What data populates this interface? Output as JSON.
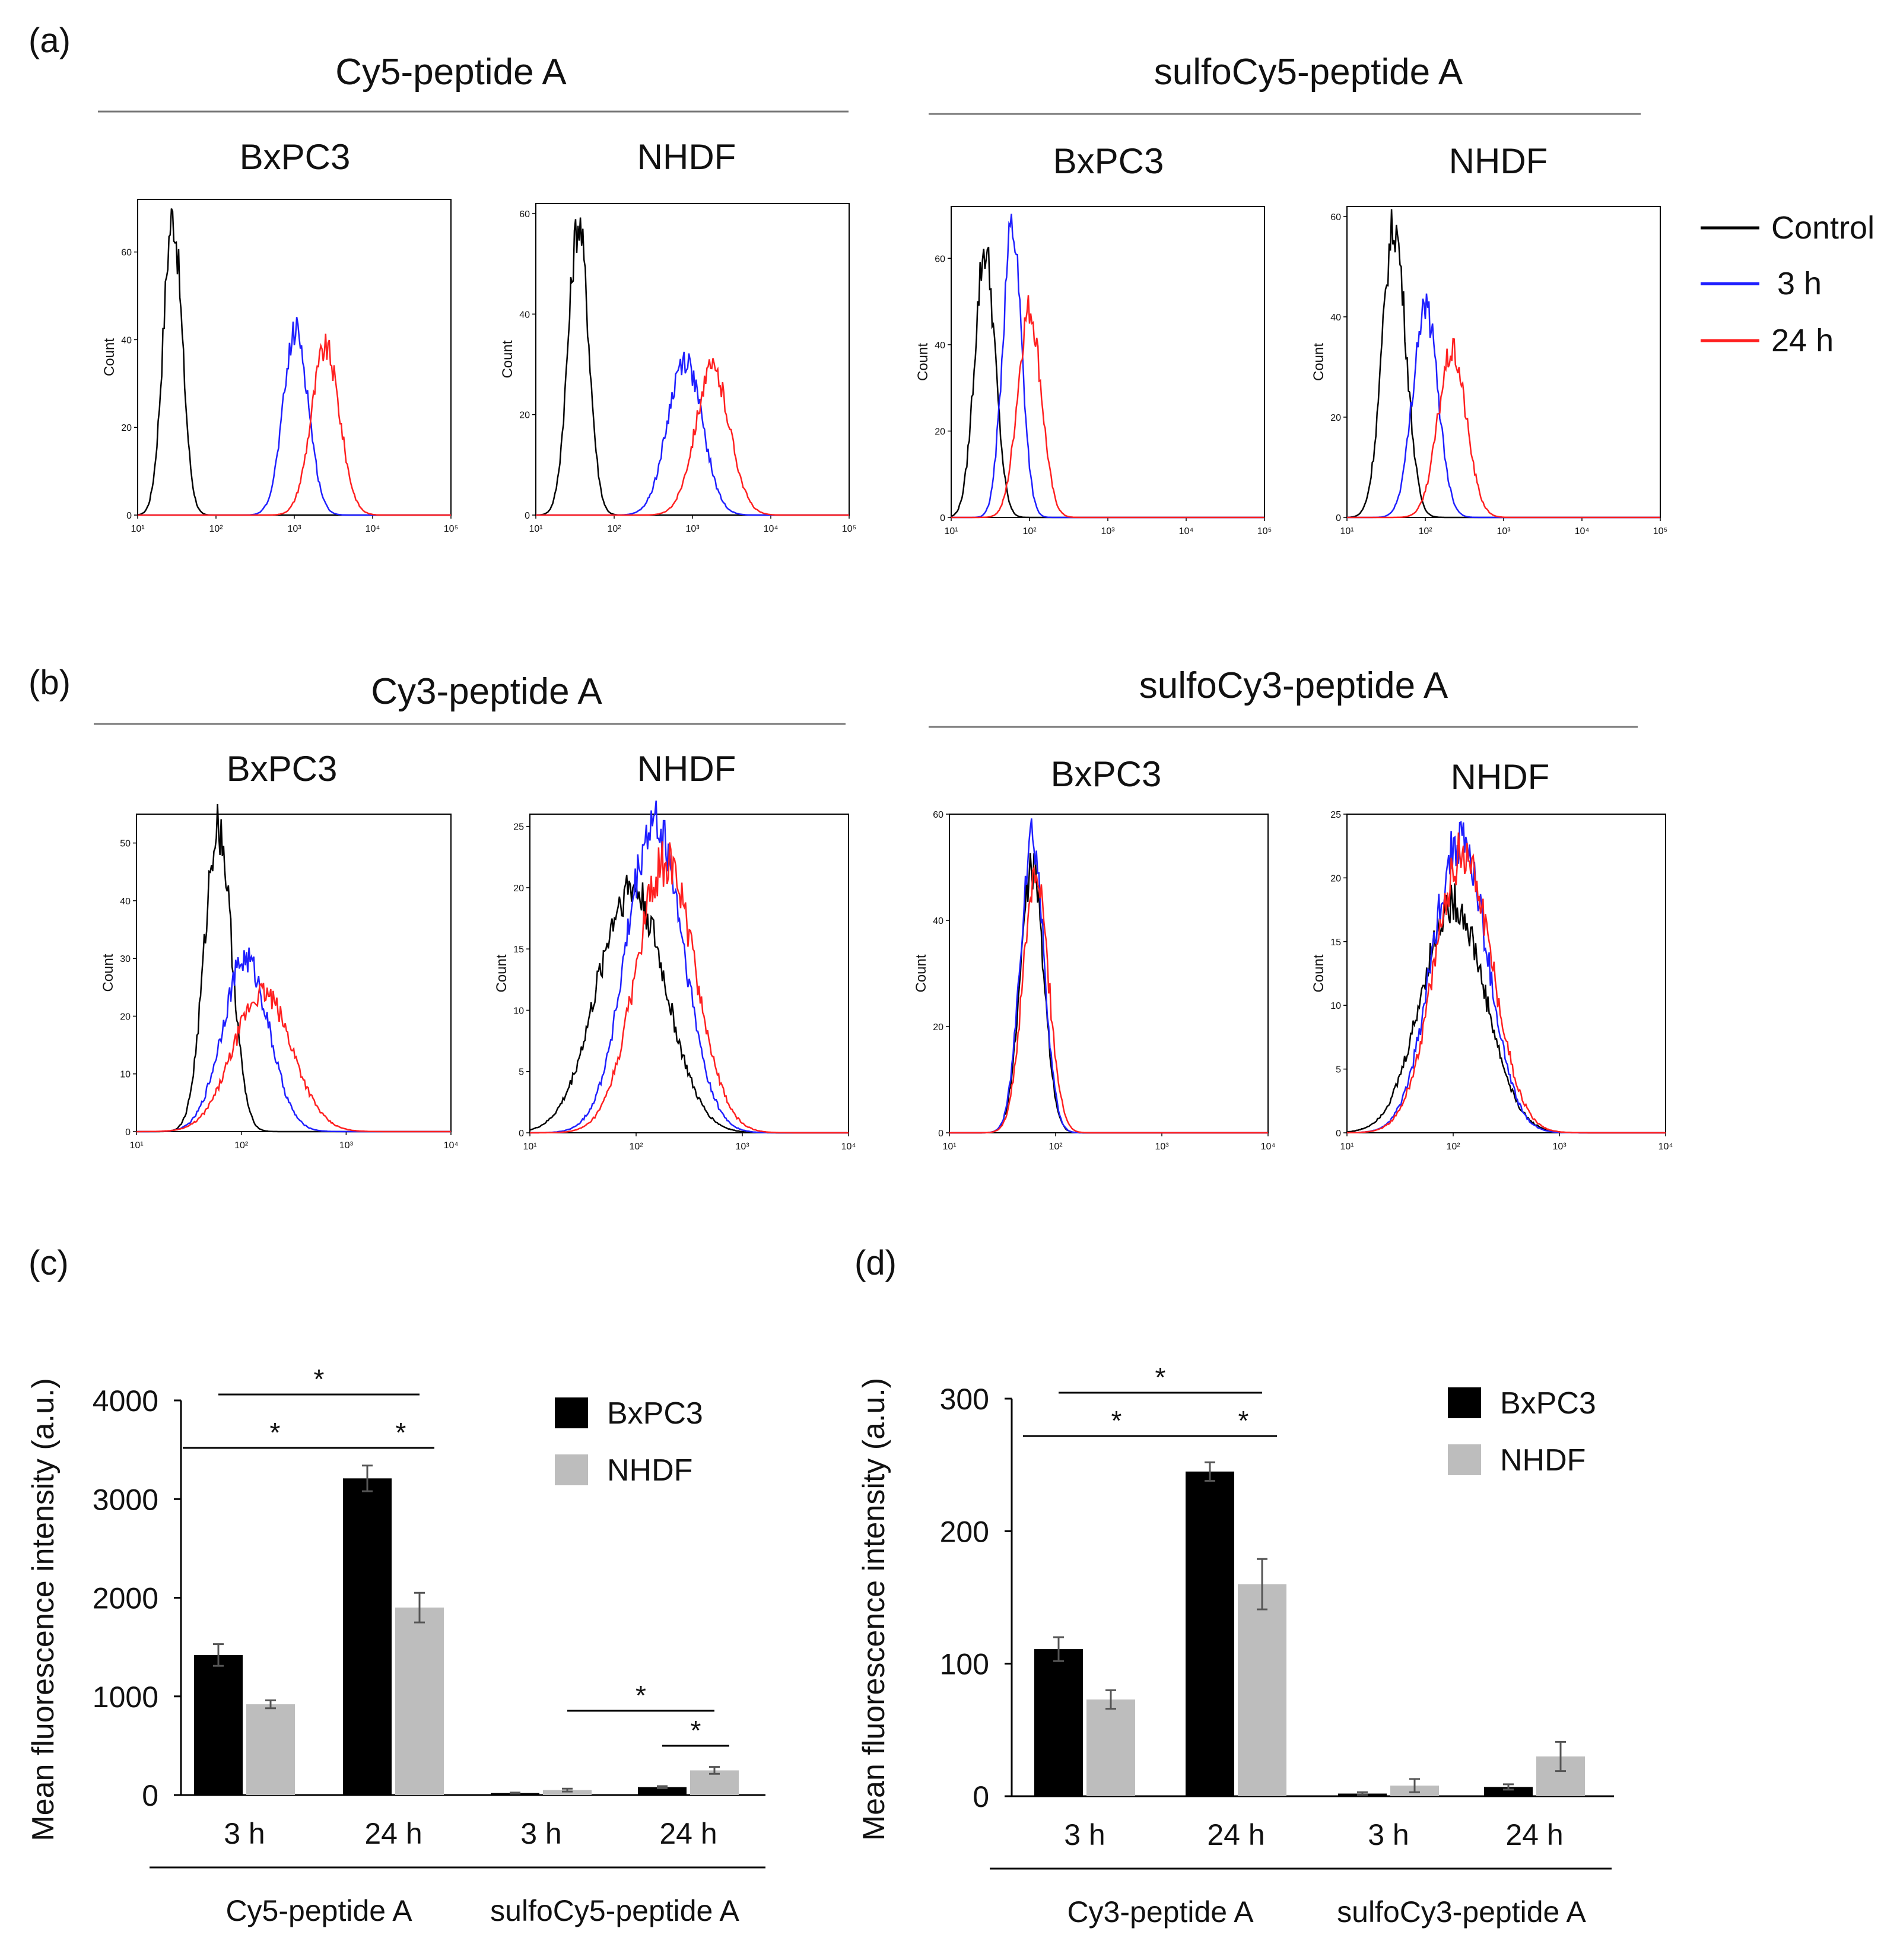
{
  "figure": {
    "panel_labels": {
      "a": "(a)",
      "b": "(b)",
      "c": "(c)",
      "d": "(d)"
    },
    "histogram_legend": [
      {
        "label": "Control",
        "color": "#000000"
      },
      {
        "label": "3 h",
        "color": "#1f1fff"
      },
      {
        "label": "24 h",
        "color": "#ff2020"
      }
    ],
    "group_titles": {
      "a_left": "Cy5-peptide A",
      "a_right": "sulfoCy5-peptide A",
      "b_left": "Cy3-peptide A",
      "b_right": "sulfoCy3-peptide A"
    }
  },
  "chart_data": [
    {
      "id": "a1",
      "type": "line",
      "panel": "(a)",
      "group": "Cy5-peptide A",
      "title": "BxPC3",
      "xscale": "log",
      "xlim": [
        10,
        100000
      ],
      "ylim": [
        0,
        72
      ],
      "yticks": [
        0,
        20,
        40,
        60
      ],
      "xtick_labels": [
        "10¹",
        "10²",
        "10³",
        "10⁴",
        "10⁵"
      ],
      "ylabel": "Count",
      "series": [
        {
          "name": "Control",
          "peak_x": 28,
          "peak_y": 68,
          "width": 0.12
        },
        {
          "name": "3 h",
          "peak_x": 1050,
          "peak_y": 42,
          "width": 0.16
        },
        {
          "name": "24 h",
          "peak_x": 2500,
          "peak_y": 38,
          "width": 0.18
        }
      ]
    },
    {
      "id": "a2",
      "type": "line",
      "panel": "(a)",
      "group": "Cy5-peptide A",
      "title": "NHDF",
      "xscale": "log",
      "xlim": [
        10,
        100000
      ],
      "ylim": [
        0,
        62
      ],
      "yticks": [
        0,
        20,
        40,
        60
      ],
      "xtick_labels": [
        "10¹",
        "10²",
        "10³",
        "10⁴",
        "10⁵"
      ],
      "ylabel": "Count",
      "series": [
        {
          "name": "Control",
          "peak_x": 35,
          "peak_y": 58,
          "width": 0.13
        },
        {
          "name": "3 h",
          "peak_x": 800,
          "peak_y": 31,
          "width": 0.22
        },
        {
          "name": "24 h",
          "peak_x": 1800,
          "peak_y": 29,
          "width": 0.22
        }
      ]
    },
    {
      "id": "a3",
      "type": "line",
      "panel": "(a)",
      "group": "sulfoCy5-peptide A",
      "title": "BxPC3",
      "xscale": "log",
      "xlim": [
        10,
        100000
      ],
      "ylim": [
        0,
        72
      ],
      "yticks": [
        0,
        20,
        40,
        60
      ],
      "xtick_labels": [
        "10¹",
        "10²",
        "10³",
        "10⁴",
        "10⁵"
      ],
      "ylabel": "Count",
      "series": [
        {
          "name": "Control",
          "peak_x": 27,
          "peak_y": 62,
          "width": 0.13
        },
        {
          "name": "3 h",
          "peak_x": 60,
          "peak_y": 68,
          "width": 0.12
        },
        {
          "name": "24 h",
          "peak_x": 100,
          "peak_y": 48,
          "width": 0.15
        }
      ]
    },
    {
      "id": "a4",
      "type": "line",
      "panel": "(a)",
      "group": "sulfoCy5-peptide A",
      "title": "NHDF",
      "xscale": "log",
      "xlim": [
        10,
        100000
      ],
      "ylim": [
        0,
        62
      ],
      "yticks": [
        0,
        20,
        40,
        60
      ],
      "xtick_labels": [
        "10¹",
        "10²",
        "10³",
        "10⁴",
        "10⁵"
      ],
      "ylabel": "Count",
      "series": [
        {
          "name": "Control",
          "peak_x": 40,
          "peak_y": 58,
          "width": 0.15
        },
        {
          "name": "3 h",
          "peak_x": 100,
          "peak_y": 42,
          "width": 0.16
        },
        {
          "name": "24 h",
          "peak_x": 220,
          "peak_y": 33,
          "width": 0.18
        }
      ]
    },
    {
      "id": "b1",
      "type": "line",
      "panel": "(b)",
      "group": "Cy3-peptide A",
      "title": "BxPC3",
      "xscale": "log",
      "xlim": [
        10,
        10000
      ],
      "ylim": [
        0,
        55
      ],
      "yticks": [
        0,
        10,
        20,
        30,
        40,
        50
      ],
      "xtick_labels": [
        "10¹",
        "10²",
        "10³",
        "10⁴"
      ],
      "ylabel": "Count",
      "series": [
        {
          "name": "Control",
          "peak_x": 60,
          "peak_y": 53,
          "width": 0.13
        },
        {
          "name": "3 h",
          "peak_x": 110,
          "peak_y": 30,
          "width": 0.22
        },
        {
          "name": "24 h",
          "peak_x": 160,
          "peak_y": 24,
          "width": 0.28
        }
      ]
    },
    {
      "id": "b2",
      "type": "line",
      "panel": "(b)",
      "group": "Cy3-peptide A",
      "title": "NHDF",
      "xscale": "log",
      "xlim": [
        10,
        10000
      ],
      "ylim": [
        0,
        26
      ],
      "yticks": [
        0,
        5,
        10,
        15,
        20,
        25
      ],
      "xtick_labels": [
        "10¹",
        "10²",
        "10³",
        "10⁴"
      ],
      "ylabel": "Count",
      "series": [
        {
          "name": "Control",
          "peak_x": 90,
          "peak_y": 20,
          "width": 0.32
        },
        {
          "name": "3 h",
          "peak_x": 150,
          "peak_y": 25,
          "width": 0.27
        },
        {
          "name": "24 h",
          "peak_x": 190,
          "peak_y": 22,
          "width": 0.28
        }
      ]
    },
    {
      "id": "b3",
      "type": "line",
      "panel": "(b)",
      "group": "sulfoCy3-peptide A",
      "title": "BxPC3",
      "xscale": "log",
      "xlim": [
        10,
        10000
      ],
      "ylim": [
        0,
        60
      ],
      "yticks": [
        0,
        20,
        40,
        60
      ],
      "xtick_labels": [
        "10¹",
        "10²",
        "10³",
        "10⁴"
      ],
      "ylabel": "Count",
      "series": [
        {
          "name": "Control",
          "peak_x": 60,
          "peak_y": 50,
          "width": 0.11
        },
        {
          "name": "3 h",
          "peak_x": 60,
          "peak_y": 56,
          "width": 0.11
        },
        {
          "name": "24 h",
          "peak_x": 65,
          "peak_y": 48,
          "width": 0.12
        }
      ]
    },
    {
      "id": "b4",
      "type": "line",
      "panel": "(b)",
      "group": "sulfoCy3-peptide A",
      "title": "NHDF",
      "xscale": "log",
      "xlim": [
        10,
        10000
      ],
      "ylim": [
        0,
        25
      ],
      "yticks": [
        0,
        5,
        10,
        15,
        20,
        25
      ],
      "xtick_labels": [
        "10¹",
        "10²",
        "10³",
        "10⁴"
      ],
      "ylabel": "Count",
      "series": [
        {
          "name": "Control",
          "peak_x": 100,
          "peak_y": 18,
          "width": 0.3
        },
        {
          "name": "3 h",
          "peak_x": 115,
          "peak_y": 23,
          "width": 0.26
        },
        {
          "name": "24 h",
          "peak_x": 125,
          "peak_y": 22,
          "width": 0.27
        }
      ]
    },
    {
      "id": "c",
      "type": "bar",
      "panel": "(c)",
      "ylabel": "Mean fluorescence intensity (a.u.)",
      "ylim": [
        0,
        4000
      ],
      "yticks": [
        0,
        1000,
        2000,
        3000,
        4000
      ],
      "categories": [
        "3 h",
        "24 h",
        "3 h",
        "24 h"
      ],
      "groups": [
        "Cy5-peptide A",
        "sulfoCy5-peptide A"
      ],
      "series": [
        {
          "name": "BxPC3",
          "color": "#000000",
          "values": [
            1420,
            3210,
            20,
            80
          ],
          "errors": [
            110,
            130,
            5,
            10
          ]
        },
        {
          "name": "NHDF",
          "color": "#bdbdbd",
          "values": [
            920,
            1900,
            50,
            250
          ],
          "errors": [
            40,
            150,
            15,
            35
          ]
        }
      ],
      "significance": [
        {
          "label": "*",
          "from": [
            0,
            0
          ],
          "to": [
            1,
            0
          ]
        },
        {
          "label": "*",
          "from": [
            0,
            0
          ],
          "to": [
            1,
            1
          ]
        },
        {
          "label": "*",
          "from": [
            1,
            0
          ],
          "to": [
            1,
            1
          ]
        },
        {
          "label": "*",
          "from": [
            2,
            1
          ],
          "to": [
            3,
            1
          ]
        },
        {
          "label": "*",
          "from": [
            3,
            0
          ],
          "to": [
            3,
            1
          ]
        }
      ]
    },
    {
      "id": "d",
      "type": "bar",
      "panel": "(d)",
      "ylabel": "Mean fluorescence intensity (a.u.)",
      "ylim": [
        0,
        300
      ],
      "yticks": [
        0,
        100,
        200,
        300
      ],
      "categories": [
        "3 h",
        "24 h",
        "3 h",
        "24 h"
      ],
      "groups": [
        "Cy3-peptide A",
        "sulfoCy3-peptide A"
      ],
      "series": [
        {
          "name": "BxPC3",
          "color": "#000000",
          "values": [
            111,
            245,
            2,
            7
          ],
          "errors": [
            9,
            7,
            1,
            2
          ]
        },
        {
          "name": "NHDF",
          "color": "#bdbdbd",
          "values": [
            73,
            160,
            8,
            30
          ],
          "errors": [
            7,
            19,
            5,
            11
          ]
        }
      ],
      "significance": [
        {
          "label": "*",
          "from": [
            0,
            0
          ],
          "to": [
            1,
            0
          ]
        },
        {
          "label": "*",
          "from": [
            0,
            0
          ],
          "to": [
            1,
            1
          ]
        },
        {
          "label": "*",
          "from": [
            1,
            0
          ],
          "to": [
            1,
            1
          ]
        }
      ]
    }
  ]
}
